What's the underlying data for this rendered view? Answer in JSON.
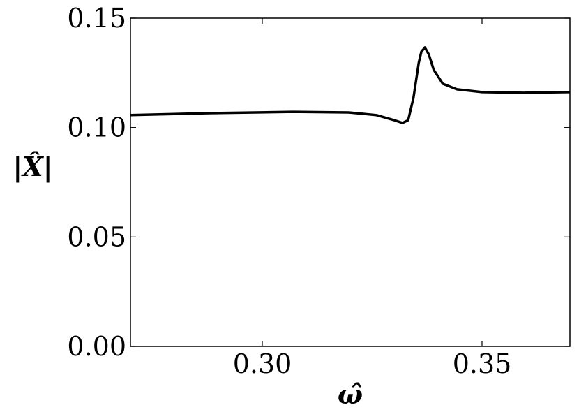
{
  "chart_data": {
    "type": "line",
    "x_label": "ω̂",
    "y_label": "|X̂|",
    "x": [
      0.27,
      0.2879,
      0.307,
      0.3197,
      0.326,
      0.33,
      0.3319,
      0.3332,
      0.3344,
      0.3356,
      0.3362,
      0.337,
      0.3379,
      0.339,
      0.3411,
      0.3443,
      0.35,
      0.3594,
      0.37
    ],
    "series": [
      {
        "color": "#000000",
        "values": [
          0.1057,
          0.1066,
          0.1072,
          0.1069,
          0.1057,
          0.1034,
          0.1021,
          0.1034,
          0.1136,
          0.1296,
          0.1347,
          0.1366,
          0.1334,
          0.1264,
          0.12,
          0.1175,
          0.1162,
          0.1159,
          0.1162
        ]
      }
    ],
    "xlim": [
      0.27,
      0.37
    ],
    "ylim": [
      0,
      0.15
    ],
    "xticks": [
      {
        "value": 0.3,
        "label": "0.30"
      },
      {
        "value": 0.35,
        "label": "0.35"
      }
    ],
    "yticks": [
      {
        "value": 0,
        "label": "0.00"
      },
      {
        "value": 0.05,
        "label": "0.05"
      },
      {
        "value": 0.1,
        "label": "0.10"
      },
      {
        "value": 0.15,
        "label": "0.15"
      }
    ],
    "grid": false
  }
}
